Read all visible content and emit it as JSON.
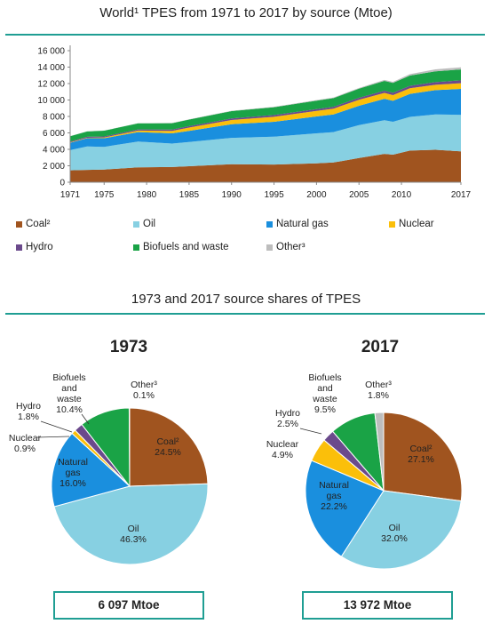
{
  "area_chart": {
    "title": "World¹ TPES from 1971 to 2017 by source (Mtoe)"
  },
  "pie_section": {
    "title": "1973 and 2017 source shares of TPES",
    "total_1973": "6 097 Mtoe",
    "total_2017": "13 972 Mtoe"
  },
  "legend": [
    {
      "label": "Coal²",
      "color": "#a0541f"
    },
    {
      "label": "Oil",
      "color": "#87d0e2"
    },
    {
      "label": "Natural gas",
      "color": "#1a8fde"
    },
    {
      "label": "Nuclear",
      "color": "#fbbf0a"
    },
    {
      "label": "Hydro",
      "color": "#6b4a8c"
    },
    {
      "label": "Biofuels and waste",
      "color": "#1aa346"
    },
    {
      "label": "Other³",
      "color": "#bdbdbd"
    }
  ],
  "chart_data": [
    {
      "type": "area",
      "title": "World¹ TPES from 1971 to 2017 by source (Mtoe)",
      "x_ticks": [
        "1971",
        "1975",
        "1980",
        "1985",
        "1990",
        "1995",
        "2000",
        "2005",
        "2010",
        "2017"
      ],
      "y_ticks": [
        "0",
        "2 000",
        "4 000",
        "6 000",
        "8 000",
        "10 000",
        "12 000",
        "14 000",
        "16 000"
      ],
      "ylim": [
        0,
        16000
      ],
      "xlim": [
        1971,
        2017
      ],
      "x": [
        1971,
        1973,
        1975,
        1979,
        1983,
        1985,
        1990,
        1995,
        2000,
        2002,
        2005,
        2008,
        2009,
        2011,
        2014,
        2017
      ],
      "series": [
        {
          "name": "Coal²",
          "values": [
            1450,
            1500,
            1550,
            1800,
            1850,
            1950,
            2200,
            2150,
            2300,
            2400,
            2950,
            3450,
            3350,
            3850,
            3950,
            3750
          ]
        },
        {
          "name": "Oil",
          "values": [
            2450,
            2850,
            2750,
            3150,
            2850,
            2950,
            3200,
            3400,
            3650,
            3700,
            4000,
            4100,
            4000,
            4100,
            4300,
            4450
          ]
        },
        {
          "name": "Natural gas",
          "values": [
            900,
            1000,
            1050,
            1150,
            1250,
            1350,
            1650,
            1800,
            2050,
            2150,
            2350,
            2600,
            2550,
            2800,
            2950,
            3150
          ]
        },
        {
          "name": "Nuclear",
          "values": [
            50,
            60,
            100,
            180,
            300,
            400,
            520,
            610,
            680,
            700,
            720,
            710,
            700,
            680,
            650,
            690
          ]
        },
        {
          "name": "Hydro",
          "values": [
            100,
            110,
            120,
            140,
            160,
            170,
            180,
            210,
            220,
            225,
            250,
            270,
            275,
            295,
            325,
            345
          ]
        },
        {
          "name": "Biofuels and waste",
          "values": [
            650,
            650,
            700,
            740,
            770,
            800,
            900,
            950,
            1020,
            1050,
            1100,
            1190,
            1200,
            1250,
            1320,
            1330
          ]
        },
        {
          "name": "Other³",
          "values": [
            10,
            10,
            15,
            20,
            30,
            35,
            45,
            60,
            70,
            75,
            90,
            120,
            135,
            170,
            240,
            260
          ]
        }
      ],
      "grid": false,
      "legend_position": "bottom"
    },
    {
      "type": "pie",
      "title": "1973",
      "slices": [
        {
          "name": "Coal²",
          "value": 24.5,
          "label": "24.5%"
        },
        {
          "name": "Oil",
          "value": 46.3,
          "label": "46.3%"
        },
        {
          "name": "Natural gas",
          "value": 16.0,
          "label": "16.0%"
        },
        {
          "name": "Nuclear",
          "value": 0.9,
          "label": "0.9%"
        },
        {
          "name": "Hydro",
          "value": 1.8,
          "label": "1.8%"
        },
        {
          "name": "Biofuels and waste",
          "value": 10.4,
          "label": "10.4%"
        },
        {
          "name": "Other³",
          "value": 0.1,
          "label": "0.1%"
        }
      ],
      "total": "6 097 Mtoe"
    },
    {
      "type": "pie",
      "title": "2017",
      "slices": [
        {
          "name": "Coal²",
          "value": 27.1,
          "label": "27.1%"
        },
        {
          "name": "Oil",
          "value": 32.0,
          "label": "32.0%"
        },
        {
          "name": "Natural gas",
          "value": 22.2,
          "label": "22.2%"
        },
        {
          "name": "Nuclear",
          "value": 4.9,
          "label": "4.9%"
        },
        {
          "name": "Hydro",
          "value": 2.5,
          "label": "2.5%"
        },
        {
          "name": "Biofuels and waste",
          "value": 9.5,
          "label": "9.5%"
        },
        {
          "name": "Other³",
          "value": 1.8,
          "label": "1.8%"
        }
      ],
      "total": "13 972 Mtoe"
    }
  ]
}
